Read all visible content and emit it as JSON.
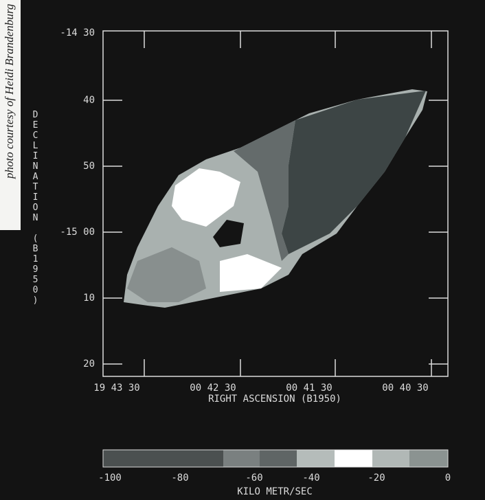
{
  "credit": "photo courtesy of Heidi Brandenburg",
  "y_axis": {
    "title": "DECLINATION (B1950)",
    "ticks": [
      "-14 30",
      "40",
      "50",
      "-15 00",
      "10",
      "20"
    ]
  },
  "x_axis": {
    "title": "RIGHT ASCENSION (B1950)",
    "ticks": [
      "19 43 30",
      "00 42 30",
      "00 41 30",
      "00 40 30"
    ]
  },
  "colorbar": {
    "title": "KILO METR/SEC",
    "ticks": [
      "-100",
      "-80",
      "-60",
      "-40",
      "-20",
      "0"
    ]
  }
}
